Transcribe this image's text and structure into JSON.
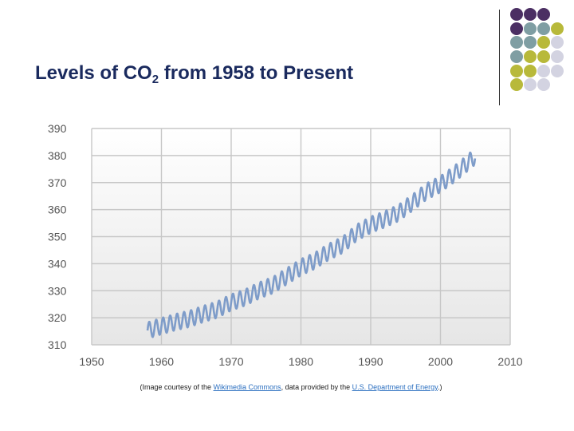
{
  "slide": {
    "title_prefix": "Levels of CO",
    "title_sub": "2",
    "title_suffix": " from 1958 to Present",
    "caption": {
      "prefix": "(Image courtesy of the ",
      "link1": "Wikimedia Commons",
      "middle": ", data provided by the ",
      "link2": "U.S. Department of Energy",
      "suffix": ".)"
    }
  },
  "decor": {
    "dot_colors": [
      "#4b2f63",
      "#7f9ea3",
      "#b8b93a",
      "#d3d3e1"
    ]
  },
  "chart_data": {
    "type": "line",
    "title": "",
    "xlabel": "",
    "ylabel": "",
    "xlim": [
      1950,
      2010
    ],
    "ylim": [
      310,
      390
    ],
    "x_ticks": [
      1950,
      1960,
      1970,
      1980,
      1990,
      2000,
      2010
    ],
    "y_ticks": [
      310,
      320,
      330,
      340,
      350,
      360,
      370,
      380,
      390
    ],
    "grid": true,
    "series": [
      {
        "name": "",
        "color": "#7e9cc9",
        "x": [
          1958,
          1960,
          1962,
          1964,
          1966,
          1968,
          1970,
          1972,
          1974,
          1976,
          1978,
          1980,
          1982,
          1984,
          1986,
          1988,
          1990,
          1992,
          1994,
          1996,
          1998,
          2000,
          2002,
          2004,
          2005
        ],
        "y": [
          315.3,
          316.9,
          318.4,
          319.6,
          321.4,
          323.0,
          325.7,
          327.5,
          330.1,
          332.1,
          335.4,
          338.7,
          341.1,
          344.4,
          347.0,
          351.5,
          354.4,
          356.4,
          358.8,
          362.6,
          366.7,
          369.4,
          373.2,
          377.5,
          379.8
        ],
        "seasonal_amplitude": 3
      }
    ]
  }
}
